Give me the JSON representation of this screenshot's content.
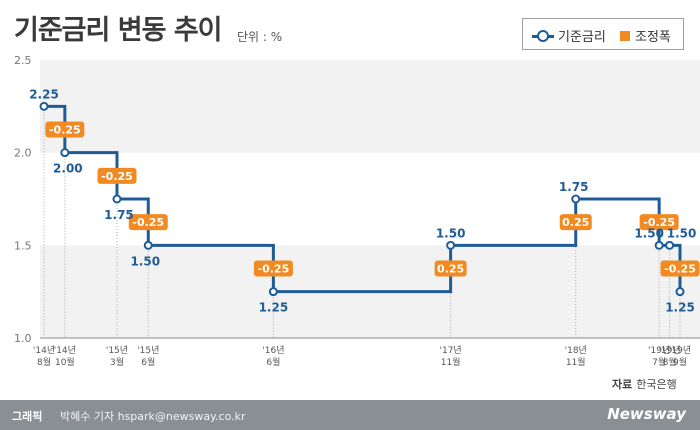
{
  "title": "기준금리 변동 추이",
  "unit": "단위 : %",
  "legend": {
    "rate": "기준금리",
    "change": "조정폭"
  },
  "source": {
    "label": "자료",
    "value": "한국은행"
  },
  "footer": {
    "label": "그래픽",
    "credit": "박혜수 기자 hspark@newsway.co.kr",
    "logo": "Newsway"
  },
  "colors": {
    "line": "#1f5c97",
    "change": "#f28a21",
    "band": "#f2f2f2"
  },
  "chart_data": {
    "type": "line",
    "step": true,
    "ylim": [
      1.0,
      2.5
    ],
    "yticks": [
      "1.0",
      "1.5",
      "2.0",
      "2.5"
    ],
    "series": [
      {
        "name": "기준금리"
      }
    ],
    "points": [
      {
        "x": "2014-08",
        "xlabel": [
          "'14년",
          "8월"
        ],
        "rate": 2.25,
        "label": "2.25",
        "change": null
      },
      {
        "x": "2014-10",
        "xlabel": [
          "'14년",
          "10월"
        ],
        "rate": 2.0,
        "label": "2.00",
        "change": "-0.25"
      },
      {
        "x": "2015-03",
        "xlabel": [
          "'15년",
          "3월"
        ],
        "rate": 1.75,
        "label": "1.75",
        "change": "-0.25"
      },
      {
        "x": "2015-06",
        "xlabel": [
          "'15년",
          "6월"
        ],
        "rate": 1.5,
        "label": "1.50",
        "change": "-0.25"
      },
      {
        "x": "2016-06",
        "xlabel": [
          "'16년",
          "6월"
        ],
        "rate": 1.25,
        "label": "1.25",
        "change": "-0.25"
      },
      {
        "x": "2017-11",
        "xlabel": [
          "'17년",
          "11월"
        ],
        "rate": 1.5,
        "label": "1.50",
        "change": "0.25"
      },
      {
        "x": "2018-11",
        "xlabel": [
          "'18년",
          "11월"
        ],
        "rate": 1.75,
        "label": "1.75",
        "change": "0.25"
      },
      {
        "x": "2019-07",
        "xlabel": [
          "'19년",
          "7월"
        ],
        "rate": 1.5,
        "label": "1.50",
        "change": "-0.25"
      },
      {
        "x": "2019-08",
        "xlabel": [
          "'19년",
          "8월"
        ],
        "rate": 1.5,
        "label": "1.50",
        "change": null
      },
      {
        "x": "2019-09",
        "xlabel": [
          "'19년",
          "9월"
        ],
        "rate": 1.25,
        "label": "1.25",
        "change": "-0.25"
      }
    ]
  }
}
